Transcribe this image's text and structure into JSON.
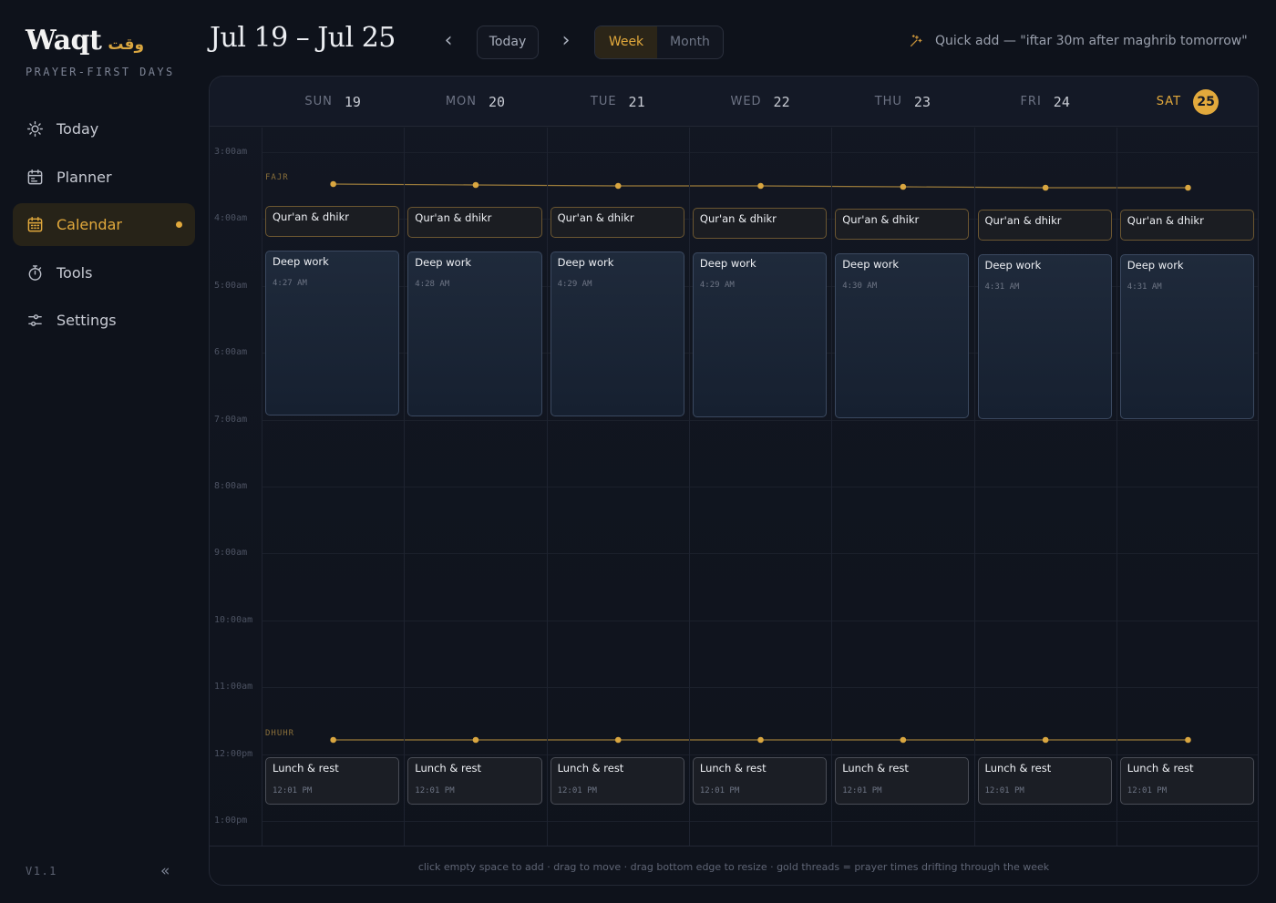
{
  "brand": {
    "name": "Waqt",
    "arabic": "وقت",
    "tagline": "PRAYER-FIRST DAYS"
  },
  "sidebar": {
    "items": [
      {
        "label": "Today",
        "icon": "sun-icon"
      },
      {
        "label": "Planner",
        "icon": "planner-icon"
      },
      {
        "label": "Calendar",
        "icon": "calendar-icon",
        "active": true
      },
      {
        "label": "Tools",
        "icon": "stopwatch-icon"
      },
      {
        "label": "Settings",
        "icon": "sliders-icon"
      }
    ],
    "version": "V1.1",
    "collapse_glyph": "«"
  },
  "header": {
    "range_title": "Jul 19 – Jul 25",
    "prev_glyph": "‹",
    "next_glyph": "›",
    "today_label": "Today",
    "view_week": "Week",
    "view_month": "Month",
    "active_view": "Week",
    "quick_add_placeholder": "Quick add — \"iftar 30m after maghrib tomorrow\""
  },
  "calendar": {
    "days": [
      {
        "dow": "SUN",
        "date": "19"
      },
      {
        "dow": "MON",
        "date": "20"
      },
      {
        "dow": "TUE",
        "date": "21"
      },
      {
        "dow": "WED",
        "date": "22"
      },
      {
        "dow": "THU",
        "date": "23"
      },
      {
        "dow": "FRI",
        "date": "24"
      },
      {
        "dow": "SAT",
        "date": "25",
        "today": true
      }
    ],
    "hours": [
      "3:00am",
      "4:00am",
      "5:00am",
      "6:00am",
      "7:00am",
      "8:00am",
      "9:00am",
      "10:00am",
      "11:00am",
      "12:00pm",
      "1:00pm"
    ],
    "prayers": [
      {
        "name": "FAJR"
      },
      {
        "name": "DHUHR"
      }
    ],
    "events": {
      "quran_title": "Qur'an & dhikr",
      "deep_title": "Deep work",
      "lunch_title": "Lunch & rest",
      "deep_times": [
        "4:27 AM",
        "4:28 AM",
        "4:29 AM",
        "4:29 AM",
        "4:30 AM",
        "4:31 AM",
        "4:31 AM"
      ],
      "lunch_times": [
        "12:01 PM",
        "12:01 PM",
        "12:01 PM",
        "12:01 PM",
        "12:01 PM",
        "12:01 PM",
        "12:01 PM"
      ]
    },
    "footer_hint": "click empty space to add · drag to move · drag bottom edge to resize · gold threads = prayer times drifting through the week"
  },
  "colors": {
    "accent": "#e2a93c",
    "background": "#0e121b"
  }
}
